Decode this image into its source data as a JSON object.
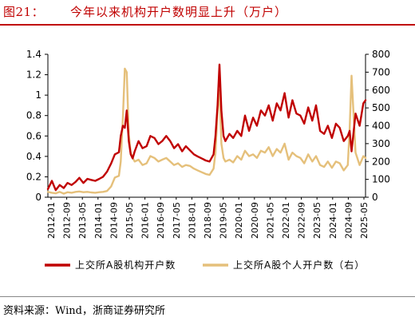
{
  "header": {
    "figure_no": "图21：",
    "title": "今年以来机构开户数明显上升（万户）"
  },
  "source": "资料来源：Wind，浙商证券研究所",
  "colors": {
    "institution": "#c00000",
    "individual": "#e5c07b",
    "accent": "#c00000"
  },
  "chart_data": {
    "type": "line",
    "title": "今年以来机构开户数明显上升（万户）",
    "x_labels": [
      "2012-01",
      "2012-09",
      "2013-05",
      "2014-01",
      "2014-09",
      "2015-05",
      "2016-01",
      "2016-09",
      "2017-05",
      "2018-01",
      "2018-09",
      "2019-05",
      "2020-01",
      "2020-09",
      "2021-05",
      "2022-01",
      "2022-09",
      "2023-05",
      "2024-01",
      "2024-09",
      "2025-05"
    ],
    "y_left": {
      "min": 0,
      "max": 1.4,
      "ticks": [
        "0",
        "0.2",
        "0.4",
        "0.6",
        "0.8",
        "1",
        "1.2",
        "1.4"
      ]
    },
    "y_right": {
      "min": 0,
      "max": 800,
      "ticks": [
        "0",
        "100",
        "200",
        "300",
        "400",
        "500",
        "600",
        "700",
        "800"
      ]
    },
    "grid": false,
    "legend_position": "bottom",
    "series": [
      {
        "name": "上交所A股机构开户数",
        "axis": "left",
        "color": "#c00000",
        "x": [
          2012.0,
          2012.17,
          2012.33,
          2012.5,
          2012.67,
          2012.83,
          2013.0,
          2013.17,
          2013.33,
          2013.5,
          2013.67,
          2013.83,
          2014.0,
          2014.17,
          2014.33,
          2014.5,
          2014.67,
          2014.83,
          2015.0,
          2015.08,
          2015.17,
          2015.25,
          2015.33,
          2015.42,
          2015.5,
          2015.58,
          2015.67,
          2015.83,
          2016.0,
          2016.17,
          2016.33,
          2016.5,
          2016.67,
          2016.83,
          2017.0,
          2017.17,
          2017.33,
          2017.5,
          2017.67,
          2017.83,
          2018.0,
          2018.17,
          2018.33,
          2018.5,
          2018.67,
          2018.83,
          2019.0,
          2019.08,
          2019.17,
          2019.25,
          2019.33,
          2019.42,
          2019.5,
          2019.67,
          2019.83,
          2020.0,
          2020.17,
          2020.33,
          2020.5,
          2020.67,
          2020.83,
          2021.0,
          2021.17,
          2021.33,
          2021.5,
          2021.67,
          2021.83,
          2022.0,
          2022.17,
          2022.33,
          2022.5,
          2022.67,
          2022.83,
          2023.0,
          2023.17,
          2023.33,
          2023.5,
          2023.67,
          2023.83,
          2024.0,
          2024.17,
          2024.33,
          2024.5,
          2024.67,
          2024.75,
          2024.83,
          2025.0,
          2025.17,
          2025.33,
          2025.42
        ],
        "values": [
          0.08,
          0.16,
          0.07,
          0.12,
          0.09,
          0.14,
          0.12,
          0.15,
          0.19,
          0.14,
          0.18,
          0.17,
          0.16,
          0.18,
          0.2,
          0.25,
          0.33,
          0.42,
          0.44,
          0.6,
          0.7,
          0.68,
          0.85,
          0.55,
          0.42,
          0.38,
          0.45,
          0.55,
          0.48,
          0.5,
          0.6,
          0.58,
          0.52,
          0.55,
          0.6,
          0.55,
          0.48,
          0.52,
          0.45,
          0.5,
          0.46,
          0.42,
          0.4,
          0.38,
          0.36,
          0.35,
          0.42,
          0.6,
          0.9,
          1.3,
          0.85,
          0.6,
          0.55,
          0.62,
          0.58,
          0.65,
          0.6,
          0.8,
          0.65,
          0.78,
          0.7,
          0.85,
          0.8,
          0.9,
          0.75,
          0.92,
          0.85,
          1.02,
          0.78,
          0.95,
          0.82,
          0.8,
          0.72,
          0.88,
          0.75,
          0.9,
          0.65,
          0.62,
          0.7,
          0.58,
          0.72,
          0.68,
          0.55,
          0.6,
          0.65,
          0.45,
          0.82,
          0.7,
          0.92,
          0.95
        ]
      },
      {
        "name": "上交所A股个人开户数（右）",
        "axis": "right",
        "color": "#e5c07b",
        "x": [
          2012.0,
          2012.17,
          2012.33,
          2012.5,
          2012.67,
          2012.83,
          2013.0,
          2013.17,
          2013.33,
          2013.5,
          2013.67,
          2013.83,
          2014.0,
          2014.17,
          2014.33,
          2014.5,
          2014.67,
          2014.83,
          2015.0,
          2015.08,
          2015.17,
          2015.25,
          2015.33,
          2015.42,
          2015.5,
          2015.58,
          2015.67,
          2015.83,
          2016.0,
          2016.17,
          2016.33,
          2016.5,
          2016.67,
          2016.83,
          2017.0,
          2017.17,
          2017.33,
          2017.5,
          2017.67,
          2017.83,
          2018.0,
          2018.17,
          2018.33,
          2018.5,
          2018.67,
          2018.83,
          2019.0,
          2019.08,
          2019.17,
          2019.25,
          2019.33,
          2019.42,
          2019.5,
          2019.67,
          2019.83,
          2020.0,
          2020.17,
          2020.33,
          2020.5,
          2020.67,
          2020.83,
          2021.0,
          2021.17,
          2021.33,
          2021.5,
          2021.67,
          2021.83,
          2022.0,
          2022.17,
          2022.33,
          2022.5,
          2022.67,
          2022.83,
          2023.0,
          2023.17,
          2023.33,
          2023.5,
          2023.67,
          2023.83,
          2024.0,
          2024.17,
          2024.33,
          2024.5,
          2024.67,
          2024.75,
          2024.83,
          2025.0,
          2025.17,
          2025.33,
          2025.42
        ],
        "values": [
          30,
          25,
          22,
          30,
          20,
          28,
          25,
          30,
          32,
          28,
          30,
          27,
          25,
          28,
          30,
          35,
          60,
          110,
          120,
          200,
          450,
          720,
          700,
          350,
          250,
          220,
          200,
          210,
          180,
          190,
          230,
          220,
          200,
          210,
          220,
          200,
          180,
          190,
          170,
          180,
          175,
          160,
          150,
          140,
          130,
          125,
          160,
          250,
          480,
          600,
          300,
          220,
          200,
          210,
          195,
          230,
          210,
          260,
          230,
          240,
          220,
          260,
          250,
          280,
          230,
          270,
          250,
          300,
          210,
          250,
          230,
          220,
          190,
          240,
          200,
          230,
          180,
          170,
          200,
          165,
          200,
          190,
          150,
          180,
          380,
          680,
          250,
          180,
          230,
          220
        ]
      }
    ]
  }
}
